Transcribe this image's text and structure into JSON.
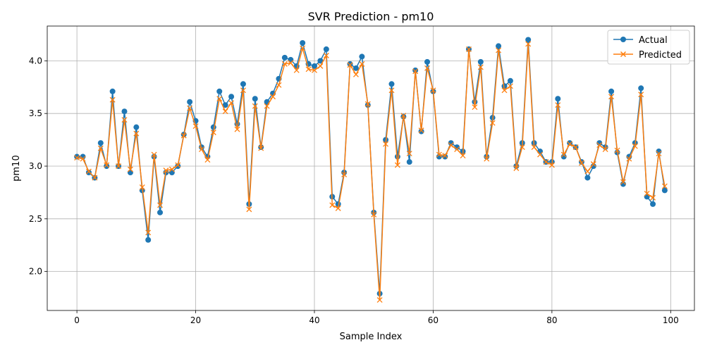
{
  "chart_data": {
    "type": "line",
    "title": "SVR Prediction - pm10",
    "xlabel": "Sample Index",
    "ylabel": "pm10",
    "xlim": [
      -5,
      104
    ],
    "ylim": [
      1.63,
      4.33
    ],
    "xticks": [
      0,
      20,
      40,
      60,
      80,
      100
    ],
    "xtick_labels": [
      "0",
      "20",
      "40",
      "60",
      "80",
      "100"
    ],
    "yticks": [
      2.0,
      2.5,
      3.0,
      3.5,
      4.0
    ],
    "ytick_labels": [
      "2.0",
      "2.5",
      "3.0",
      "3.5",
      "4.0"
    ],
    "grid": true,
    "legend_position": "top-right",
    "x": [
      0,
      1,
      2,
      3,
      4,
      5,
      6,
      7,
      8,
      9,
      10,
      11,
      12,
      13,
      14,
      15,
      16,
      17,
      18,
      19,
      20,
      21,
      22,
      23,
      24,
      25,
      26,
      27,
      28,
      29,
      30,
      31,
      32,
      33,
      34,
      35,
      36,
      37,
      38,
      39,
      40,
      41,
      42,
      43,
      44,
      45,
      46,
      47,
      48,
      49,
      50,
      51,
      52,
      53,
      54,
      55,
      56,
      57,
      58,
      59,
      60,
      61,
      62,
      63,
      64,
      65,
      66,
      67,
      68,
      69,
      70,
      71,
      72,
      73,
      74,
      75,
      76,
      77,
      78,
      79,
      80,
      81,
      82,
      83,
      84,
      85,
      86,
      87,
      88,
      89,
      90,
      91,
      92,
      93,
      94,
      95,
      96,
      97,
      98,
      99
    ],
    "series": [
      {
        "name": "Actual",
        "color": "#1f77b4",
        "marker": "circle",
        "values": [
          3.09,
          3.09,
          2.94,
          2.89,
          3.22,
          3.0,
          3.71,
          3.0,
          3.52,
          2.94,
          3.37,
          2.77,
          2.3,
          3.09,
          2.56,
          2.94,
          2.94,
          3.0,
          3.3,
          3.61,
          3.43,
          3.18,
          3.09,
          3.37,
          3.71,
          3.58,
          3.66,
          3.4,
          3.78,
          2.64,
          3.64,
          3.18,
          3.61,
          3.69,
          3.83,
          4.03,
          4.01,
          3.95,
          4.17,
          3.97,
          3.95,
          4.0,
          4.11,
          2.71,
          2.64,
          2.94,
          3.97,
          3.93,
          4.04,
          3.58,
          2.56,
          1.79,
          3.25,
          3.78,
          3.09,
          3.47,
          3.04,
          3.91,
          3.33,
          3.99,
          3.71,
          3.09,
          3.09,
          3.22,
          3.18,
          3.14,
          4.11,
          3.61,
          3.99,
          3.09,
          3.46,
          4.14,
          3.76,
          3.81,
          3.0,
          3.22,
          4.2,
          3.22,
          3.14,
          3.04,
          3.04,
          3.64,
          3.09,
          3.22,
          3.18,
          3.04,
          2.89,
          3.0,
          3.22,
          3.18,
          3.71,
          3.13,
          2.83,
          3.09,
          3.22,
          3.74,
          2.71,
          2.64,
          3.14,
          2.77
        ]
      },
      {
        "name": "Predicted",
        "color": "#ff7f0e",
        "marker": "x",
        "values": [
          3.08,
          3.07,
          2.95,
          2.89,
          3.17,
          3.01,
          3.63,
          3.0,
          3.44,
          2.97,
          3.31,
          2.8,
          2.37,
          3.11,
          2.63,
          2.96,
          2.97,
          3.01,
          3.29,
          3.55,
          3.38,
          3.16,
          3.06,
          3.32,
          3.64,
          3.52,
          3.6,
          3.35,
          3.72,
          2.59,
          3.57,
          3.17,
          3.57,
          3.66,
          3.77,
          3.97,
          3.98,
          3.91,
          4.12,
          3.92,
          3.91,
          3.95,
          4.05,
          2.63,
          2.6,
          2.92,
          3.96,
          3.87,
          3.97,
          3.59,
          2.54,
          1.73,
          3.21,
          3.72,
          3.01,
          3.48,
          3.12,
          3.9,
          3.34,
          3.93,
          3.72,
          3.11,
          3.1,
          3.2,
          3.16,
          3.1,
          4.11,
          3.56,
          3.94,
          3.07,
          3.41,
          4.1,
          3.72,
          3.76,
          2.98,
          3.18,
          4.16,
          3.18,
          3.11,
          3.04,
          3.01,
          3.58,
          3.11,
          3.21,
          3.18,
          3.03,
          2.95,
          3.02,
          3.2,
          3.16,
          3.66,
          3.15,
          2.85,
          3.07,
          3.19,
          3.68,
          2.74,
          2.7,
          3.12,
          2.81
        ]
      }
    ]
  }
}
